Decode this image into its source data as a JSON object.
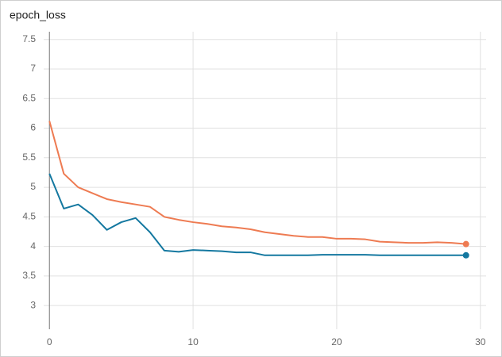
{
  "chart_data": {
    "type": "line",
    "title": "epoch_loss",
    "x": [
      0,
      1,
      2,
      3,
      4,
      5,
      6,
      7,
      8,
      9,
      10,
      11,
      12,
      13,
      14,
      15,
      16,
      17,
      18,
      19,
      20,
      21,
      22,
      23,
      24,
      25,
      26,
      27,
      28,
      29
    ],
    "series": [
      {
        "color": "#ee7b52",
        "values": [
          6.12,
          5.23,
          5.0,
          4.9,
          4.8,
          4.75,
          4.71,
          4.67,
          4.5,
          4.45,
          4.41,
          4.38,
          4.34,
          4.32,
          4.29,
          4.24,
          4.21,
          4.18,
          4.16,
          4.16,
          4.13,
          4.13,
          4.12,
          4.08,
          4.07,
          4.06,
          4.06,
          4.07,
          4.06,
          4.04
        ]
      },
      {
        "color": "#1478a0",
        "values": [
          5.23,
          4.64,
          4.71,
          4.53,
          4.28,
          4.41,
          4.48,
          4.24,
          3.93,
          3.91,
          3.94,
          3.93,
          3.92,
          3.9,
          3.9,
          3.85,
          3.85,
          3.85,
          3.85,
          3.86,
          3.86,
          3.86,
          3.86,
          3.85,
          3.85,
          3.85,
          3.85,
          3.85,
          3.85,
          3.85
        ]
      }
    ],
    "xlim": [
      -0.4,
      30.4
    ],
    "xticks": [
      0,
      10,
      20,
      30
    ],
    "ylim": [
      2.6,
      7.63
    ],
    "yticks": [
      3,
      3.5,
      4,
      4.5,
      5,
      5.5,
      6,
      6.5,
      7,
      7.5
    ],
    "grid": true
  }
}
